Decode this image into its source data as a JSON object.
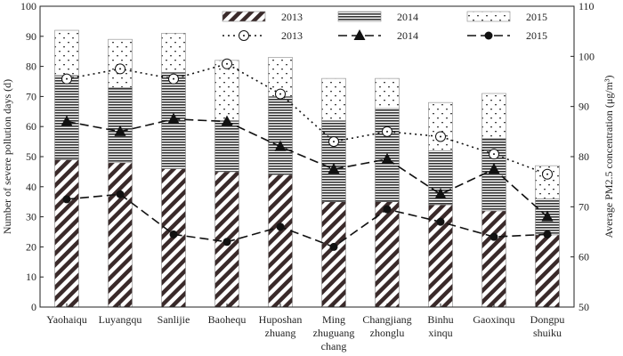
{
  "chart_data": {
    "type": "bar",
    "categories": [
      "Yaohaiqu",
      "Luyangqu",
      "Sanlijie",
      "Baohequ",
      "Huposhan zhuang",
      "Ming zhuguang chang",
      "Changjiang zhonglu",
      "Binhu xinqu",
      "Gaoxinqu",
      "Dongpu shuiku"
    ],
    "category_lines": [
      [
        "Yaohaiqu"
      ],
      [
        "Luyangqu"
      ],
      [
        "Sanlijie"
      ],
      [
        "Baohequ"
      ],
      [
        "Huposhan",
        "zhuang"
      ],
      [
        "Ming",
        "zhuguang",
        "chang"
      ],
      [
        "Changjiang",
        "zhonglu"
      ],
      [
        "Binhu",
        "xinqu"
      ],
      [
        "Gaoxinqu"
      ],
      [
        "Dongpu",
        "shuiku"
      ]
    ],
    "ylabel": "Number of severe pollution days (d)",
    "y2label": "Average PM2.5 concentration (μg/m³)",
    "ylim": [
      0,
      100
    ],
    "y2lim": [
      50,
      110
    ],
    "yticks": [
      0,
      10,
      20,
      30,
      40,
      50,
      60,
      70,
      80,
      90,
      100
    ],
    "y2ticks": [
      50,
      60,
      70,
      80,
      90,
      100,
      110
    ],
    "bar_series": [
      {
        "name": "2013",
        "values": [
          49,
          48,
          46,
          45,
          44,
          35,
          35,
          34,
          32,
          24
        ]
      },
      {
        "name": "2014",
        "values": [
          28,
          25,
          32,
          17,
          26,
          27,
          31,
          18,
          24,
          12
        ]
      },
      {
        "name": "2015",
        "values": [
          15,
          16,
          13,
          20,
          13,
          14,
          10,
          16,
          15,
          11
        ]
      }
    ],
    "line_series": [
      {
        "name": "2013",
        "values": [
          95.5,
          97.5,
          95.5,
          98.5,
          92.5,
          83,
          85,
          84,
          80.5,
          76.5
        ]
      },
      {
        "name": "2014",
        "values": [
          87,
          85,
          87.5,
          87,
          82,
          77.5,
          79.5,
          72.5,
          77.5,
          68
        ]
      },
      {
        "name": "2015",
        "values": [
          71.5,
          72.5,
          64.5,
          63,
          66,
          62,
          69.5,
          67,
          64,
          64.5
        ]
      }
    ],
    "legend_position": "top-right"
  }
}
